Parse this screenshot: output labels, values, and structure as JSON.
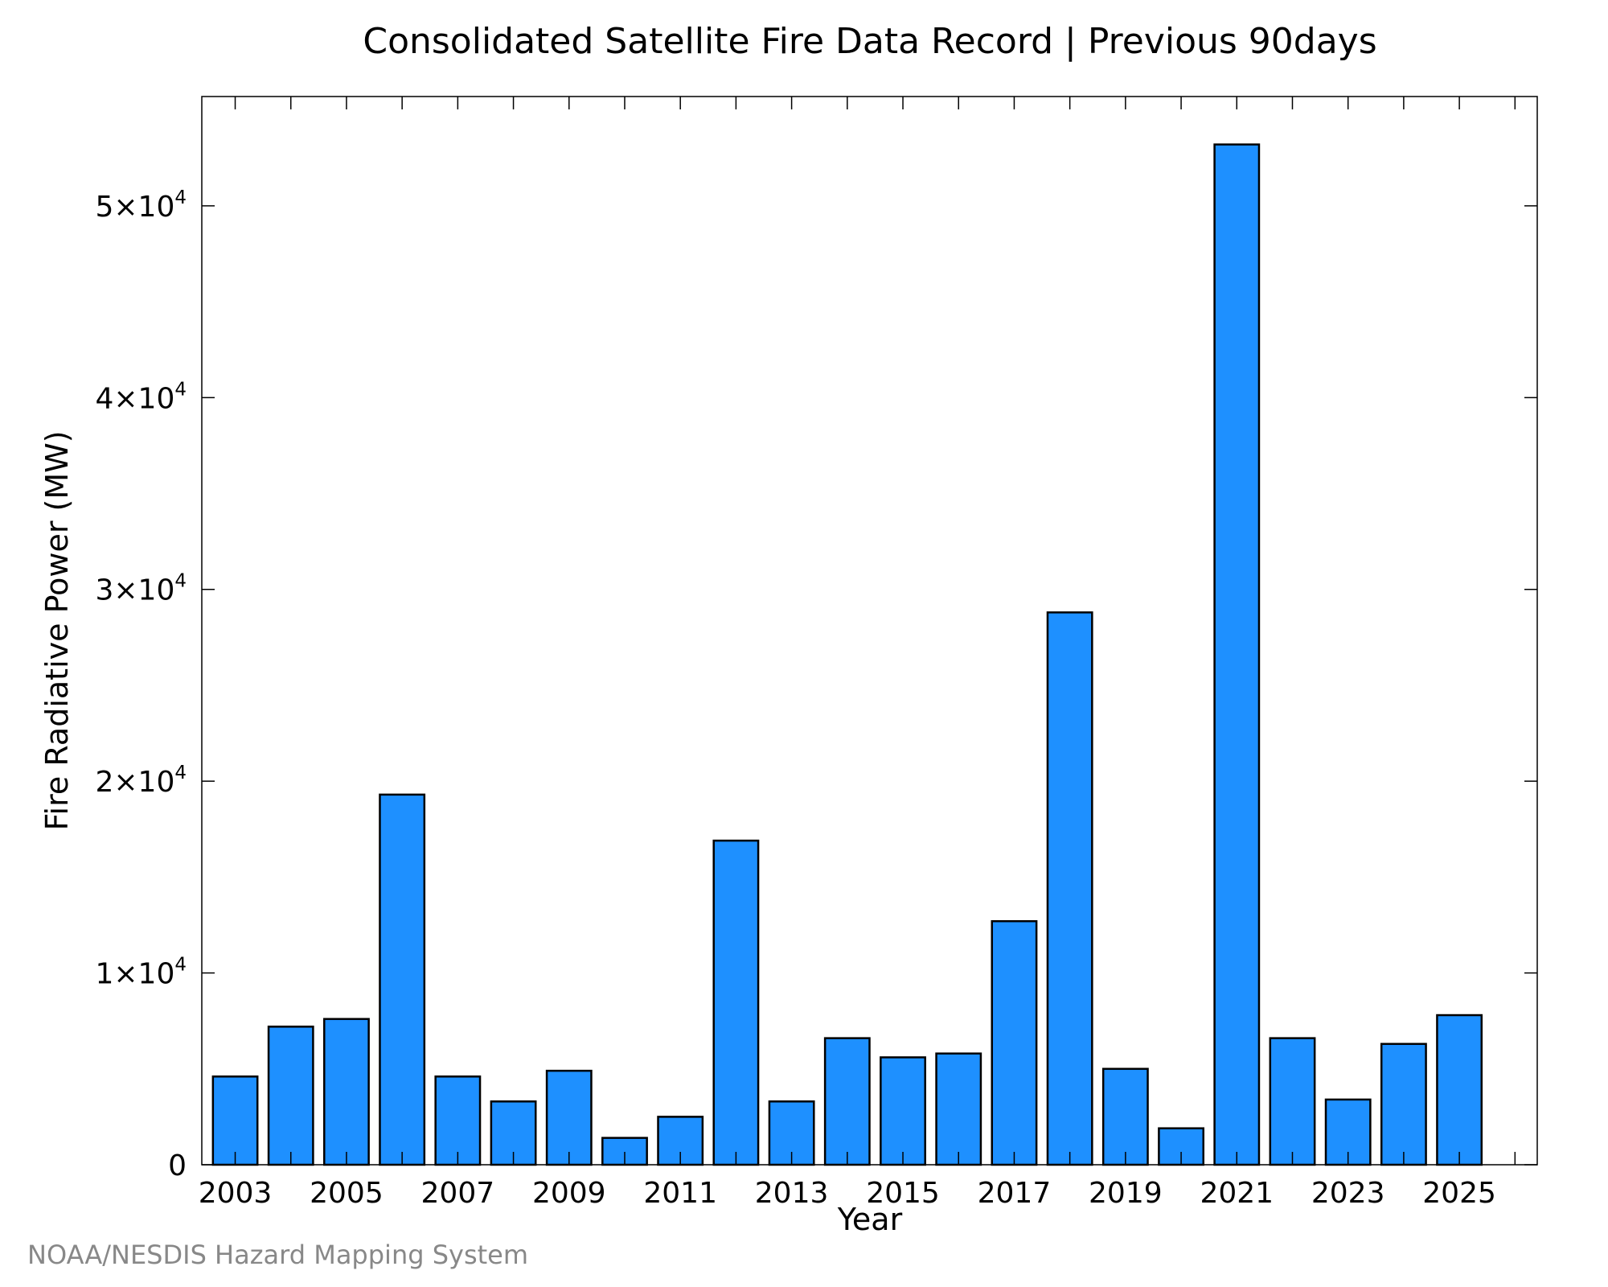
{
  "chart_data": {
    "type": "bar",
    "title": "Consolidated Satellite Fire Data Record | Previous 90days",
    "xlabel": "Year",
    "ylabel": "Fire Radiative Power (MW)",
    "credit": "NOAA/NESDIS Hazard Mapping System",
    "categories": [
      2003,
      2004,
      2005,
      2006,
      2007,
      2008,
      2009,
      2010,
      2011,
      2012,
      2013,
      2014,
      2015,
      2016,
      2017,
      2018,
      2019,
      2020,
      2021,
      2022,
      2023,
      2024,
      2025
    ],
    "values": [
      4600,
      7200,
      7600,
      19300,
      4600,
      3300,
      4900,
      1400,
      2500,
      16900,
      3300,
      6600,
      5600,
      5800,
      12700,
      28800,
      5000,
      1900,
      53200,
      6600,
      3400,
      6300,
      7800
    ],
    "x_tick_labels": [
      "2003",
      "2005",
      "2007",
      "2009",
      "2011",
      "2013",
      "2015",
      "2017",
      "2019",
      "2021",
      "2023",
      "2025"
    ],
    "y_ticks": [
      {
        "value": 0,
        "mantissa": "0",
        "exponent": ""
      },
      {
        "value": 10000,
        "mantissa": "1×10",
        "exponent": "4"
      },
      {
        "value": 20000,
        "mantissa": "2×10",
        "exponent": "4"
      },
      {
        "value": 30000,
        "mantissa": "3×10",
        "exponent": "4"
      },
      {
        "value": 40000,
        "mantissa": "4×10",
        "exponent": "4"
      },
      {
        "value": 50000,
        "mantissa": "5×10",
        "exponent": "4"
      }
    ],
    "xlim": [
      2002.4,
      2026.4
    ],
    "ylim": [
      0,
      55700
    ],
    "bar_color": "#1e90ff",
    "bar_edge_color": "#000000",
    "grid": false,
    "legend": "none"
  }
}
